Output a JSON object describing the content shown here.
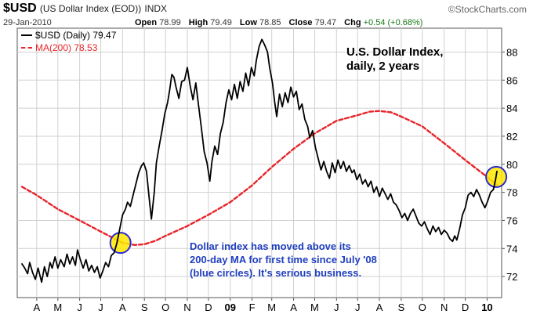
{
  "header": {
    "symbol": "$USD",
    "name": "(US Dollar Index (EOD))",
    "exchange": "INDX",
    "date": "29-Jan-2010",
    "open_label": "Open",
    "open": "78.99",
    "high_label": "High",
    "high": "79.49",
    "low_label": "Low",
    "low": "78.85",
    "close_label": "Close",
    "close": "79.47",
    "chg_label": "Chg",
    "chg": "+0.54 (+0.68%)",
    "brand": "©StockCharts.com"
  },
  "legend": {
    "price": "$USD (Daily) 79.47",
    "ma": "MA(200) 78.53"
  },
  "plot_title": {
    "line1": "U.S. Dollar Index,",
    "line2": "daily, 2 years"
  },
  "annotation": {
    "line1": "Dollar index has moved above its",
    "line2": "200-day MA for first time since July '08",
    "line3": "(blue circles). It's serious business."
  },
  "colors": {
    "price": "#000000",
    "ma": "#e8242a",
    "circle_fill": "#ffe800",
    "circle_stroke": "#2a2ad0",
    "grid": "#d0d0d0",
    "annotation": "#1f3fbf"
  },
  "chart_data": {
    "type": "line",
    "title": "U.S. Dollar Index, daily, 2 years",
    "ylim": [
      70.5,
      89.7
    ],
    "y_ticks": [
      72,
      74,
      76,
      78,
      80,
      82,
      84,
      86,
      88
    ],
    "y_axis_side": "right",
    "grid": true,
    "legend_position": "top-left",
    "x_range": [
      "2008-03-25",
      "2010-01-29"
    ],
    "x_ticks": [
      {
        "date": "2008-04-15",
        "label": "A"
      },
      {
        "date": "2008-05-15",
        "label": "M"
      },
      {
        "date": "2008-06-15",
        "label": "J"
      },
      {
        "date": "2008-07-15",
        "label": "J"
      },
      {
        "date": "2008-08-15",
        "label": "A"
      },
      {
        "date": "2008-09-15",
        "label": "S"
      },
      {
        "date": "2008-10-15",
        "label": "O"
      },
      {
        "date": "2008-11-15",
        "label": "N"
      },
      {
        "date": "2008-12-15",
        "label": "D"
      },
      {
        "date": "2009-01-15",
        "label": "09",
        "bold": true
      },
      {
        "date": "2009-02-15",
        "label": "F"
      },
      {
        "date": "2009-03-15",
        "label": "M"
      },
      {
        "date": "2009-04-15",
        "label": "A"
      },
      {
        "date": "2009-05-15",
        "label": "M"
      },
      {
        "date": "2009-06-15",
        "label": "J"
      },
      {
        "date": "2009-07-15",
        "label": "J"
      },
      {
        "date": "2009-08-15",
        "label": "A"
      },
      {
        "date": "2009-09-15",
        "label": "S"
      },
      {
        "date": "2009-10-15",
        "label": "O"
      },
      {
        "date": "2009-11-15",
        "label": "N"
      },
      {
        "date": "2009-12-15",
        "label": "D"
      },
      {
        "date": "2010-01-15",
        "label": "10",
        "bold": true
      }
    ],
    "series": [
      {
        "name": "$USD (Daily)",
        "style": "solid",
        "points": [
          [
            "2008-03-25",
            72.9
          ],
          [
            "2008-03-29",
            72.6
          ],
          [
            "2008-04-02",
            72.2
          ],
          [
            "2008-04-05",
            73.0
          ],
          [
            "2008-04-09",
            72.3
          ],
          [
            "2008-04-13",
            71.8
          ],
          [
            "2008-04-17",
            72.6
          ],
          [
            "2008-04-22",
            71.6
          ],
          [
            "2008-04-26",
            72.7
          ],
          [
            "2008-04-30",
            72.0
          ],
          [
            "2008-05-04",
            73.0
          ],
          [
            "2008-05-07",
            72.6
          ],
          [
            "2008-05-11",
            73.4
          ],
          [
            "2008-05-15",
            72.6
          ],
          [
            "2008-05-19",
            73.2
          ],
          [
            "2008-05-24",
            72.7
          ],
          [
            "2008-05-28",
            73.6
          ],
          [
            "2008-06-01",
            72.9
          ],
          [
            "2008-06-05",
            73.4
          ],
          [
            "2008-06-09",
            72.8
          ],
          [
            "2008-06-12",
            73.9
          ],
          [
            "2008-06-16",
            73.2
          ],
          [
            "2008-06-20",
            72.6
          ],
          [
            "2008-06-24",
            73.2
          ],
          [
            "2008-06-28",
            72.4
          ],
          [
            "2008-07-02",
            72.8
          ],
          [
            "2008-07-06",
            72.3
          ],
          [
            "2008-07-10",
            72.7
          ],
          [
            "2008-07-14",
            71.9
          ],
          [
            "2008-07-18",
            72.4
          ],
          [
            "2008-07-22",
            73.0
          ],
          [
            "2008-07-26",
            72.7
          ],
          [
            "2008-07-30",
            73.5
          ],
          [
            "2008-08-03",
            73.7
          ],
          [
            "2008-08-07",
            74.4
          ],
          [
            "2008-08-11",
            75.4
          ],
          [
            "2008-08-15",
            76.4
          ],
          [
            "2008-08-19",
            76.8
          ],
          [
            "2008-08-22",
            77.3
          ],
          [
            "2008-08-26",
            77.0
          ],
          [
            "2008-08-30",
            77.8
          ],
          [
            "2008-09-03",
            78.6
          ],
          [
            "2008-09-07",
            79.4
          ],
          [
            "2008-09-11",
            79.9
          ],
          [
            "2008-09-14",
            80.1
          ],
          [
            "2008-09-18",
            79.5
          ],
          [
            "2008-09-22",
            77.5
          ],
          [
            "2008-09-25",
            76.1
          ],
          [
            "2008-09-29",
            78.0
          ],
          [
            "2008-10-02",
            80.1
          ],
          [
            "2008-10-06",
            81.3
          ],
          [
            "2008-10-10",
            82.4
          ],
          [
            "2008-10-14",
            83.6
          ],
          [
            "2008-10-18",
            84.4
          ],
          [
            "2008-10-21",
            85.3
          ],
          [
            "2008-10-24",
            86.4
          ],
          [
            "2008-10-27",
            86.2
          ],
          [
            "2008-10-30",
            85.5
          ],
          [
            "2008-11-03",
            84.7
          ],
          [
            "2008-11-07",
            85.9
          ],
          [
            "2008-11-11",
            86.0
          ],
          [
            "2008-11-15",
            86.9
          ],
          [
            "2008-11-19",
            85.6
          ],
          [
            "2008-11-23",
            84.6
          ],
          [
            "2008-11-27",
            85.8
          ],
          [
            "2008-12-01",
            84.2
          ],
          [
            "2008-12-05",
            82.6
          ],
          [
            "2008-12-09",
            80.9
          ],
          [
            "2008-12-13",
            80.1
          ],
          [
            "2008-12-17",
            78.8
          ],
          [
            "2008-12-20",
            80.2
          ],
          [
            "2008-12-24",
            81.3
          ],
          [
            "2008-12-28",
            80.7
          ],
          [
            "2009-01-01",
            82.2
          ],
          [
            "2009-01-05",
            83.0
          ],
          [
            "2009-01-09",
            84.4
          ],
          [
            "2009-01-13",
            85.3
          ],
          [
            "2009-01-17",
            84.6
          ],
          [
            "2009-01-21",
            85.7
          ],
          [
            "2009-01-25",
            84.7
          ],
          [
            "2009-01-29",
            85.9
          ],
          [
            "2009-02-02",
            85.2
          ],
          [
            "2009-02-06",
            86.5
          ],
          [
            "2009-02-10",
            85.6
          ],
          [
            "2009-02-14",
            86.9
          ],
          [
            "2009-02-18",
            86.3
          ],
          [
            "2009-02-21",
            87.4
          ],
          [
            "2009-02-25",
            88.4
          ],
          [
            "2009-03-01",
            88.9
          ],
          [
            "2009-03-05",
            88.5
          ],
          [
            "2009-03-09",
            88.0
          ],
          [
            "2009-03-12",
            86.9
          ],
          [
            "2009-03-16",
            85.8
          ],
          [
            "2009-03-19",
            84.5
          ],
          [
            "2009-03-22",
            83.4
          ],
          [
            "2009-03-26",
            85.0
          ],
          [
            "2009-03-30",
            84.1
          ],
          [
            "2009-04-03",
            85.1
          ],
          [
            "2009-04-07",
            84.4
          ],
          [
            "2009-04-11",
            85.5
          ],
          [
            "2009-04-15",
            84.8
          ],
          [
            "2009-04-19",
            85.2
          ],
          [
            "2009-04-23",
            83.9
          ],
          [
            "2009-04-27",
            84.3
          ],
          [
            "2009-05-01",
            83.2
          ],
          [
            "2009-05-05",
            82.7
          ],
          [
            "2009-05-08",
            81.9
          ],
          [
            "2009-05-12",
            82.4
          ],
          [
            "2009-05-16",
            81.2
          ],
          [
            "2009-05-20",
            80.4
          ],
          [
            "2009-05-24",
            79.6
          ],
          [
            "2009-05-28",
            80.2
          ],
          [
            "2009-06-01",
            79.5
          ],
          [
            "2009-06-05",
            79.0
          ],
          [
            "2009-06-09",
            80.1
          ],
          [
            "2009-06-13",
            79.4
          ],
          [
            "2009-06-17",
            80.3
          ],
          [
            "2009-06-21",
            79.7
          ],
          [
            "2009-06-25",
            80.2
          ],
          [
            "2009-06-29",
            79.5
          ],
          [
            "2009-07-03",
            79.9
          ],
          [
            "2009-07-07",
            79.4
          ],
          [
            "2009-07-10",
            79.6
          ],
          [
            "2009-07-14",
            78.9
          ],
          [
            "2009-07-18",
            79.3
          ],
          [
            "2009-07-22",
            78.6
          ],
          [
            "2009-07-26",
            78.9
          ],
          [
            "2009-07-30",
            78.4
          ],
          [
            "2009-08-03",
            78.8
          ],
          [
            "2009-08-07",
            78.0
          ],
          [
            "2009-08-11",
            78.4
          ],
          [
            "2009-08-15",
            77.7
          ],
          [
            "2009-08-19",
            78.3
          ],
          [
            "2009-08-23",
            77.9
          ],
          [
            "2009-08-27",
            77.5
          ],
          [
            "2009-08-31",
            77.9
          ],
          [
            "2009-09-04",
            77.3
          ],
          [
            "2009-09-08",
            77.1
          ],
          [
            "2009-09-12",
            76.7
          ],
          [
            "2009-09-16",
            76.2
          ],
          [
            "2009-09-20",
            76.5
          ],
          [
            "2009-09-24",
            76.0
          ],
          [
            "2009-09-28",
            76.5
          ],
          [
            "2009-10-02",
            76.8
          ],
          [
            "2009-10-06",
            76.3
          ],
          [
            "2009-10-10",
            75.8
          ],
          [
            "2009-10-14",
            75.6
          ],
          [
            "2009-10-18",
            75.9
          ],
          [
            "2009-10-22",
            75.4
          ],
          [
            "2009-10-26",
            75.0
          ],
          [
            "2009-10-30",
            75.6
          ],
          [
            "2009-11-03",
            75.2
          ],
          [
            "2009-11-07",
            75.5
          ],
          [
            "2009-11-11",
            75.0
          ],
          [
            "2009-11-15",
            75.3
          ],
          [
            "2009-11-19",
            75.1
          ],
          [
            "2009-11-23",
            74.7
          ],
          [
            "2009-11-27",
            74.5
          ],
          [
            "2009-11-30",
            74.9
          ],
          [
            "2009-12-03",
            74.6
          ],
          [
            "2009-12-07",
            75.4
          ],
          [
            "2009-12-11",
            76.4
          ],
          [
            "2009-12-15",
            76.9
          ],
          [
            "2009-12-19",
            77.8
          ],
          [
            "2009-12-23",
            78.0
          ],
          [
            "2009-12-27",
            77.7
          ],
          [
            "2009-12-31",
            78.2
          ],
          [
            "2010-01-04",
            77.8
          ],
          [
            "2010-01-08",
            77.3
          ],
          [
            "2010-01-12",
            76.9
          ],
          [
            "2010-01-16",
            77.4
          ],
          [
            "2010-01-20",
            78.0
          ],
          [
            "2010-01-24",
            78.2
          ],
          [
            "2010-01-27",
            78.9
          ],
          [
            "2010-01-29",
            79.5
          ]
        ]
      },
      {
        "name": "MA(200)",
        "style": "dashed",
        "points": [
          [
            "2008-03-25",
            78.4
          ],
          [
            "2008-04-15",
            77.8
          ],
          [
            "2008-05-15",
            76.8
          ],
          [
            "2008-06-15",
            76.0
          ],
          [
            "2008-07-15",
            75.2
          ],
          [
            "2008-08-15",
            74.4
          ],
          [
            "2008-09-01",
            74.25
          ],
          [
            "2008-09-15",
            74.3
          ],
          [
            "2008-10-01",
            74.55
          ],
          [
            "2008-10-15",
            74.9
          ],
          [
            "2008-11-15",
            75.6
          ],
          [
            "2008-12-15",
            76.4
          ],
          [
            "2009-01-15",
            77.3
          ],
          [
            "2009-02-15",
            78.5
          ],
          [
            "2009-03-15",
            79.8
          ],
          [
            "2009-04-15",
            81.1
          ],
          [
            "2009-05-15",
            82.2
          ],
          [
            "2009-06-15",
            83.1
          ],
          [
            "2009-07-15",
            83.5
          ],
          [
            "2009-08-01",
            83.75
          ],
          [
            "2009-08-15",
            83.8
          ],
          [
            "2009-09-01",
            83.7
          ],
          [
            "2009-09-15",
            83.4
          ],
          [
            "2009-10-15",
            82.7
          ],
          [
            "2009-11-15",
            81.5
          ],
          [
            "2009-12-15",
            80.3
          ],
          [
            "2010-01-15",
            79.1
          ],
          [
            "2010-01-29",
            78.53
          ]
        ]
      }
    ],
    "highlights": [
      {
        "date": "2008-08-12",
        "y": 74.4
      },
      {
        "date": "2010-01-28",
        "y": 79.1
      }
    ]
  }
}
